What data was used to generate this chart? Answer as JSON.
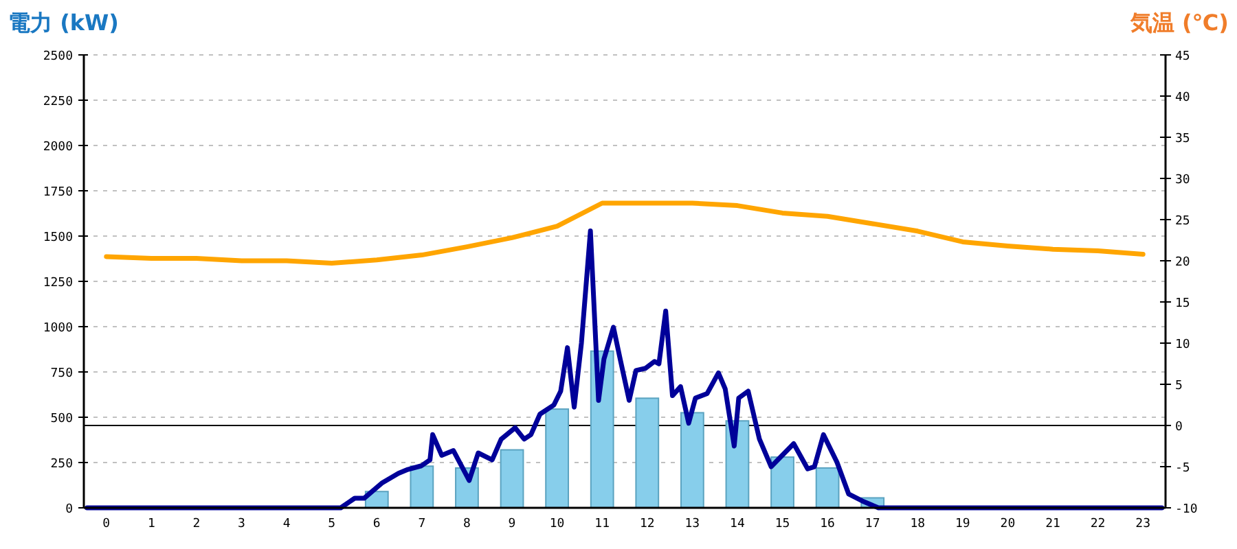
{
  "chart_data": {
    "type": "bar",
    "ylabel": "電力 (kW)",
    "y2label": "気温 (℃)",
    "x": [
      0,
      1,
      2,
      3,
      4,
      5,
      6,
      7,
      8,
      9,
      10,
      11,
      12,
      13,
      14,
      15,
      16,
      17,
      18,
      19,
      20,
      21,
      22,
      23
    ],
    "xlim": [
      -0.5,
      23.5
    ],
    "xticks": [
      0,
      1,
      2,
      3,
      4,
      5,
      6,
      7,
      8,
      9,
      10,
      11,
      12,
      13,
      14,
      15,
      16,
      17,
      18,
      19,
      20,
      21,
      22,
      23
    ],
    "series": [
      {
        "color": "#87ceeb",
        "values": [
          0,
          0,
          0,
          0,
          0,
          0,
          90,
          230,
          220,
          320,
          545,
          865,
          605,
          525,
          480,
          280,
          220,
          55,
          0,
          0,
          0,
          0,
          0,
          0
        ]
      },
      {
        "type": "line",
        "color": "#000099",
        "x": [
          -0.43,
          5.2,
          5.51,
          5.72,
          6.11,
          6.48,
          6.69,
          6.99,
          7.18,
          7.24,
          7.44,
          7.7,
          8.05,
          8.25,
          8.56,
          8.76,
          9.07,
          9.27,
          9.42,
          9.62,
          9.93,
          10.08,
          10.23,
          10.38,
          10.54,
          10.74,
          10.92,
          11.04,
          11.25,
          11.4,
          11.6,
          11.75,
          11.96,
          12.16,
          12.26,
          12.41,
          12.56,
          12.74,
          12.92,
          13.07,
          13.33,
          13.58,
          13.73,
          13.93,
          14.03,
          14.24,
          14.49,
          14.75,
          15.25,
          15.56,
          15.71,
          15.91,
          16.21,
          16.47,
          16.77,
          17.13,
          23.42
        ],
        "values": [
          0,
          0,
          53,
          53,
          136,
          190,
          212,
          232,
          265,
          404,
          290,
          316,
          151,
          303,
          265,
          379,
          442,
          379,
          404,
          517,
          568,
          644,
          884,
          556,
          909,
          1528,
          593,
          821,
          997,
          821,
          593,
          758,
          770,
          808,
          795,
          1086,
          619,
          669,
          467,
          606,
          631,
          745,
          657,
          341,
          606,
          644,
          379,
          227,
          354,
          215,
          227,
          404,
          252,
          76,
          38,
          0,
          0
        ]
      },
      {
        "type": "line",
        "axis": "y2",
        "color": "#ffa500",
        "values": [
          20.5,
          20.3,
          20.3,
          20,
          20,
          19.7,
          20.1,
          20.7,
          21.7,
          22.8,
          24.2,
          27,
          27,
          27,
          26.7,
          25.8,
          25.4,
          24.5,
          23.6,
          22.3,
          21.8,
          21.4,
          21.2,
          20.8
        ]
      }
    ],
    "ylim": [
      0,
      2500
    ],
    "yticks": [
      0,
      250,
      500,
      750,
      1000,
      1250,
      1500,
      1750,
      2000,
      2250,
      2500
    ],
    "y2lim": [
      -10,
      45
    ],
    "y2ticks": [
      -10,
      -5,
      0,
      5,
      10,
      15,
      20,
      25,
      30,
      35,
      40,
      45
    ],
    "grid": "y",
    "ref_lines": [
      {
        "axis": "y2",
        "value": 0,
        "color": "#000000"
      }
    ]
  }
}
